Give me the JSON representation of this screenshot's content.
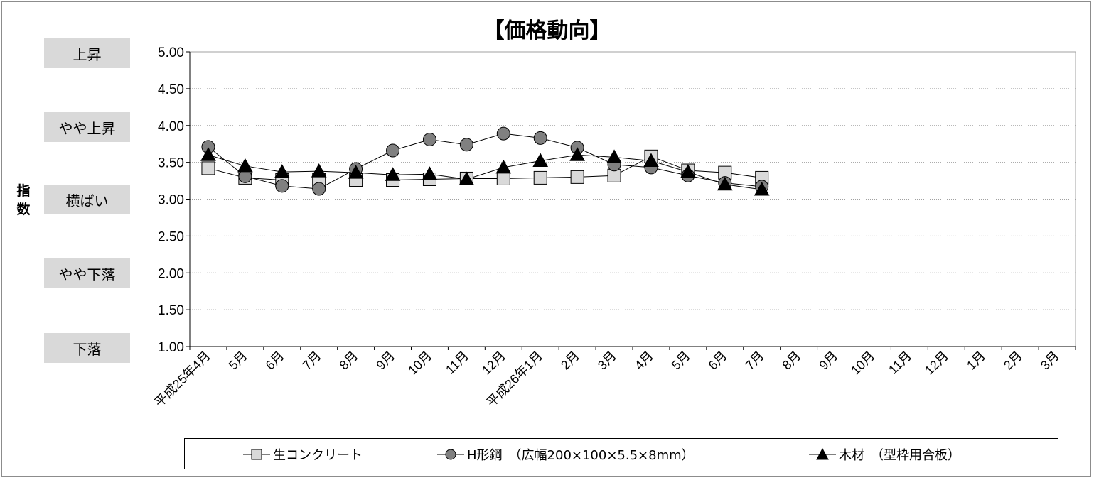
{
  "chart_data": {
    "type": "line",
    "title": "【価格動向】",
    "ylabel": "指数",
    "ylim": [
      1.0,
      5.0
    ],
    "ytick_step": 0.5,
    "yticks": [
      "5.00",
      "4.50",
      "4.00",
      "3.50",
      "3.00",
      "2.50",
      "2.00",
      "1.50",
      "1.00"
    ],
    "grid": true,
    "legend_position": "bottom",
    "level_labels": [
      {
        "label": "上昇",
        "value": 5.0
      },
      {
        "label": "やや上昇",
        "value": 4.0
      },
      {
        "label": "横ばい",
        "value": 3.0
      },
      {
        "label": "やや下落",
        "value": 2.0
      },
      {
        "label": "下落",
        "value": 1.0
      }
    ],
    "categories": [
      "平成25年4月",
      "5月",
      "6月",
      "7月",
      "8月",
      "9月",
      "10月",
      "11月",
      "12月",
      "平成26年1月",
      "2月",
      "3月",
      "4月",
      "5月",
      "6月",
      "7月",
      "8月",
      "9月",
      "10月",
      "11月",
      "12月",
      "1月",
      "2月",
      "3月"
    ],
    "series": [
      {
        "name": "生コンクリート",
        "marker": "square",
        "marker_color": "#d9d9d9",
        "values": [
          3.42,
          3.29,
          3.26,
          3.26,
          3.26,
          3.26,
          3.27,
          3.28,
          3.28,
          3.29,
          3.3,
          3.32,
          3.58,
          3.39,
          3.36,
          3.29,
          null,
          null,
          null,
          null,
          null,
          null,
          null,
          null
        ]
      },
      {
        "name": "H形鋼　（広幅200×100×5.5×8mm）",
        "marker": "circle",
        "marker_color": "#808080",
        "values": [
          3.71,
          3.31,
          3.18,
          3.14,
          3.41,
          3.66,
          3.81,
          3.74,
          3.89,
          3.83,
          3.7,
          3.47,
          3.43,
          3.32,
          3.22,
          3.17,
          null,
          null,
          null,
          null,
          null,
          null,
          null,
          null
        ]
      },
      {
        "name": "木材　（型枠用合板）",
        "marker": "triangle",
        "marker_color": "#000000",
        "values": [
          3.6,
          3.45,
          3.37,
          3.38,
          3.36,
          3.33,
          3.34,
          3.27,
          3.43,
          3.52,
          3.6,
          3.57,
          3.52,
          3.37,
          3.2,
          3.13,
          null,
          null,
          null,
          null,
          null,
          null,
          null,
          null
        ]
      }
    ]
  }
}
